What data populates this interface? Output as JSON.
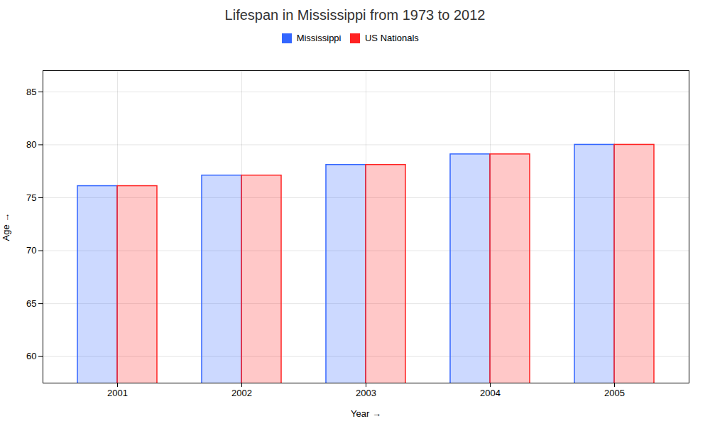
{
  "chart_data": {
    "type": "bar",
    "title": "Lifespan in Mississippi from 1973 to 2012",
    "xlabel": "Year",
    "ylabel": "Age",
    "categories": [
      "2001",
      "2002",
      "2003",
      "2004",
      "2005"
    ],
    "series": [
      {
        "name": "Mississippi",
        "color": "#3366ff",
        "values": [
          76.1,
          77.1,
          78.1,
          79.1,
          80.0
        ]
      },
      {
        "name": "US Nationals",
        "color": "#ff2222",
        "values": [
          76.1,
          77.1,
          78.1,
          79.1,
          80.0
        ]
      }
    ],
    "ylim": [
      57.5,
      87
    ],
    "yticks": [
      60,
      65,
      70,
      75,
      80,
      85
    ],
    "grid": true,
    "legend": "upper center"
  }
}
